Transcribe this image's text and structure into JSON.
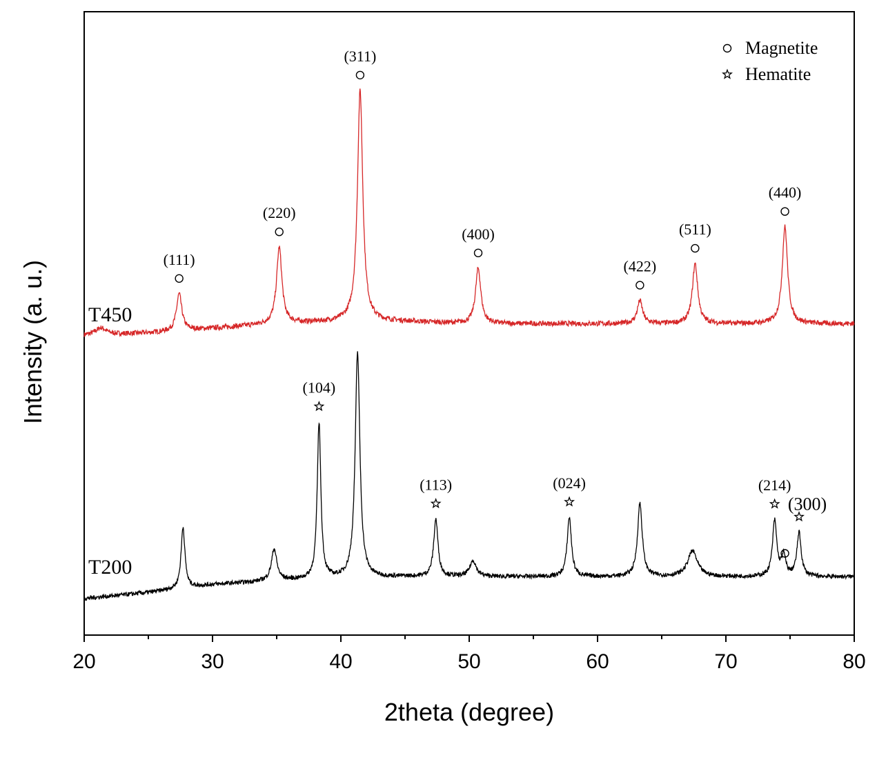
{
  "chart_data": {
    "type": "line",
    "title": "",
    "xlabel": "2theta (degree)",
    "ylabel": "Intensity (a. u.)",
    "xlim": [
      20,
      80
    ],
    "y_ticks_labeled": false,
    "x_ticks": [
      20,
      30,
      40,
      50,
      60,
      70,
      80
    ],
    "grid": false,
    "legend": {
      "position": "top-right",
      "entries": [
        {
          "symbol": "circle",
          "label": "Magnetite"
        },
        {
          "symbol": "star",
          "label": "Hematite"
        }
      ]
    },
    "series": [
      {
        "name": "T450",
        "color": "#d62728",
        "baseline": [
          [
            20,
            0.02
          ],
          [
            25,
            0.03
          ],
          [
            30,
            0.05
          ],
          [
            35,
            0.07
          ],
          [
            40,
            0.08
          ],
          [
            45,
            0.08
          ],
          [
            50,
            0.07
          ],
          [
            55,
            0.07
          ],
          [
            60,
            0.07
          ],
          [
            65,
            0.07
          ],
          [
            70,
            0.07
          ],
          [
            75,
            0.07
          ],
          [
            80,
            0.07
          ]
        ],
        "peaks": [
          {
            "x": 21.3,
            "height": 0.03,
            "width": 0.5
          },
          {
            "x": 27.4,
            "height": 0.16,
            "width": 0.25
          },
          {
            "x": 35.2,
            "height": 0.33,
            "width": 0.25
          },
          {
            "x": 41.5,
            "height": 1.0,
            "width": 0.25
          },
          {
            "x": 50.7,
            "height": 0.24,
            "width": 0.25
          },
          {
            "x": 63.3,
            "height": 0.1,
            "width": 0.25
          },
          {
            "x": 67.6,
            "height": 0.26,
            "width": 0.25
          },
          {
            "x": 74.6,
            "height": 0.42,
            "width": 0.25
          }
        ]
      },
      {
        "name": "T200",
        "color": "#000000",
        "baseline": [
          [
            20,
            0.0
          ],
          [
            25,
            0.03
          ],
          [
            30,
            0.07
          ],
          [
            35,
            0.09
          ],
          [
            40,
            0.1
          ],
          [
            45,
            0.11
          ],
          [
            50,
            0.11
          ],
          [
            55,
            0.11
          ],
          [
            60,
            0.11
          ],
          [
            65,
            0.11
          ],
          [
            70,
            0.11
          ],
          [
            75,
            0.11
          ],
          [
            80,
            0.11
          ]
        ],
        "peaks": [
          {
            "x": 27.7,
            "height": 0.31,
            "width": 0.18
          },
          {
            "x": 34.8,
            "height": 0.16,
            "width": 0.25
          },
          {
            "x": 38.3,
            "height": 0.79,
            "width": 0.17
          },
          {
            "x": 41.3,
            "height": 1.14,
            "width": 0.22
          },
          {
            "x": 47.4,
            "height": 0.29,
            "width": 0.2
          },
          {
            "x": 50.3,
            "height": 0.08,
            "width": 0.3
          },
          {
            "x": 57.8,
            "height": 0.3,
            "width": 0.2
          },
          {
            "x": 63.3,
            "height": 0.37,
            "width": 0.22
          },
          {
            "x": 67.4,
            "height": 0.13,
            "width": 0.45
          },
          {
            "x": 73.8,
            "height": 0.28,
            "width": 0.2
          },
          {
            "x": 74.5,
            "height": 0.1,
            "width": 0.2
          },
          {
            "x": 75.7,
            "height": 0.22,
            "width": 0.2
          }
        ]
      }
    ],
    "annotations": [
      {
        "series": "T450",
        "x": 27.4,
        "label": "(111)",
        "marker": "circle"
      },
      {
        "series": "T450",
        "x": 35.2,
        "label": "(220)",
        "marker": "circle"
      },
      {
        "series": "T450",
        "x": 41.5,
        "label": "(311)",
        "marker": "circle"
      },
      {
        "series": "T450",
        "x": 50.7,
        "label": "(400)",
        "marker": "circle"
      },
      {
        "series": "T450",
        "x": 63.3,
        "label": "(422)",
        "marker": "circle"
      },
      {
        "series": "T450",
        "x": 67.6,
        "label": "(511)",
        "marker": "circle"
      },
      {
        "series": "T450",
        "x": 74.6,
        "label": "(440)",
        "marker": "circle"
      },
      {
        "series": "T200",
        "x": 38.3,
        "label": "(104)",
        "marker": "star"
      },
      {
        "series": "T200",
        "x": 47.4,
        "label": "(113)",
        "marker": "star"
      },
      {
        "series": "T200",
        "x": 57.8,
        "label": "(024)",
        "marker": "star"
      },
      {
        "series": "T200",
        "x": 73.8,
        "label": "(214)",
        "marker": "star"
      },
      {
        "series": "T200",
        "x": 75.7,
        "label": "(300)",
        "marker": "star"
      },
      {
        "series": "T200",
        "x": 74.6,
        "label": "",
        "marker": "circle"
      }
    ]
  }
}
